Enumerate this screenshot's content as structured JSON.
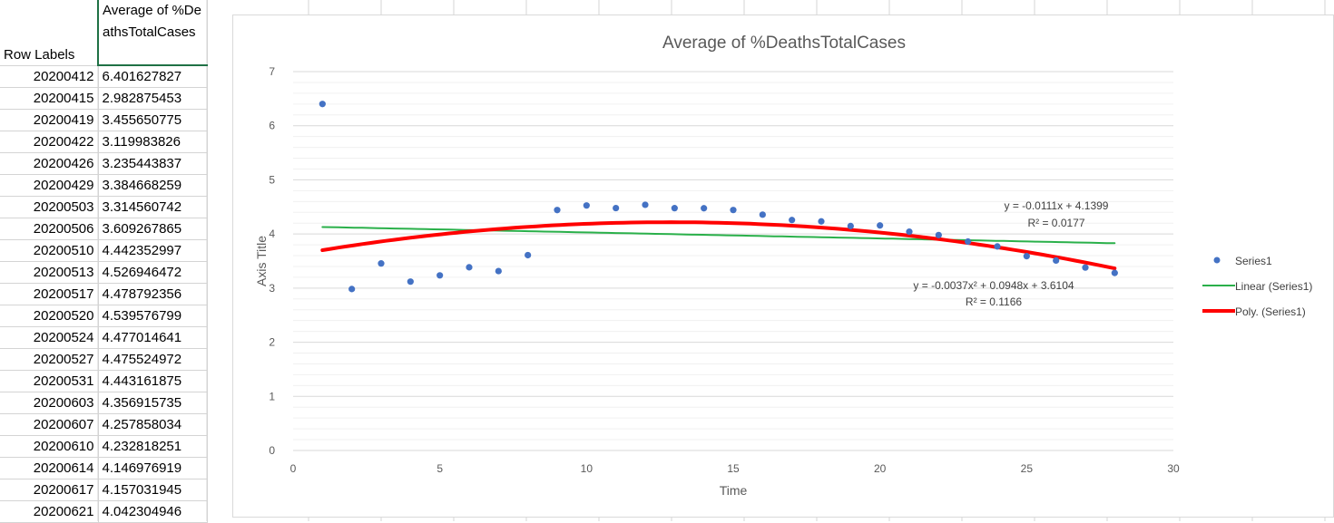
{
  "table": {
    "header_row_labels": "Row Labels",
    "header_average": "Average of %DeathsTotalCases",
    "rows": [
      {
        "label": "20200412",
        "value": "6.401627827"
      },
      {
        "label": "20200415",
        "value": "2.982875453"
      },
      {
        "label": "20200419",
        "value": "3.455650775"
      },
      {
        "label": "20200422",
        "value": "3.119983826"
      },
      {
        "label": "20200426",
        "value": "3.235443837"
      },
      {
        "label": "20200429",
        "value": "3.384668259"
      },
      {
        "label": "20200503",
        "value": "3.314560742"
      },
      {
        "label": "20200506",
        "value": "3.609267865"
      },
      {
        "label": "20200510",
        "value": "4.442352997"
      },
      {
        "label": "20200513",
        "value": "4.526946472"
      },
      {
        "label": "20200517",
        "value": "4.478792356"
      },
      {
        "label": "20200520",
        "value": "4.539576799"
      },
      {
        "label": "20200524",
        "value": "4.477014641"
      },
      {
        "label": "20200527",
        "value": "4.475524972"
      },
      {
        "label": "20200531",
        "value": "4.443161875"
      },
      {
        "label": "20200603",
        "value": "4.356915735"
      },
      {
        "label": "20200607",
        "value": "4.257858034"
      },
      {
        "label": "20200610",
        "value": "4.232818251"
      },
      {
        "label": "20200614",
        "value": "4.146976919"
      },
      {
        "label": "20200617",
        "value": "4.157031945"
      },
      {
        "label": "20200621",
        "value": "4.042304946"
      }
    ]
  },
  "chart_data": {
    "type": "scatter",
    "title": "Average of %DeathsTotalCases",
    "xlabel": "Time",
    "ylabel": "Axis Title",
    "xlim": [
      0,
      30
    ],
    "ylim": [
      0,
      7
    ],
    "xticks": [
      0,
      5,
      10,
      15,
      20,
      25,
      30
    ],
    "yticks": [
      0,
      1,
      2,
      3,
      4,
      5,
      6,
      7
    ],
    "grid": true,
    "legend_position": "right",
    "series": [
      {
        "name": "Series1",
        "color": "#4472c4",
        "x": [
          1,
          2,
          3,
          4,
          5,
          6,
          7,
          8,
          9,
          10,
          11,
          12,
          13,
          14,
          15,
          16,
          17,
          18,
          19,
          20,
          21,
          22,
          23,
          24,
          25,
          26,
          27,
          28
        ],
        "y": [
          6.401627827,
          2.982875453,
          3.455650775,
          3.119983826,
          3.235443837,
          3.384668259,
          3.314560742,
          3.609267865,
          4.442352997,
          4.526946472,
          4.478792356,
          4.539576799,
          4.477014641,
          4.475524972,
          4.443161875,
          4.356915735,
          4.257858034,
          4.232818251,
          4.146976919,
          4.157031945,
          4.042304946,
          3.98,
          3.86,
          3.77,
          3.59,
          3.51,
          3.38,
          3.28
        ]
      }
    ],
    "trendlines": [
      {
        "name": "Linear (Series1)",
        "color": "#2ab04a",
        "kind": "linear",
        "coefficients": [
          4.1399,
          -0.0111
        ],
        "equation": "y = -0.0111x + 4.1399",
        "r2": "R² = 0.0177"
      },
      {
        "name": "Poly. (Series1)",
        "color": "#ff0000",
        "kind": "poly2",
        "coefficients": [
          3.6104,
          0.0948,
          -0.0037
        ],
        "equation": "y = -0.0037x² + 0.0948x + 3.6104",
        "r2": "R² = 0.1166"
      }
    ]
  }
}
